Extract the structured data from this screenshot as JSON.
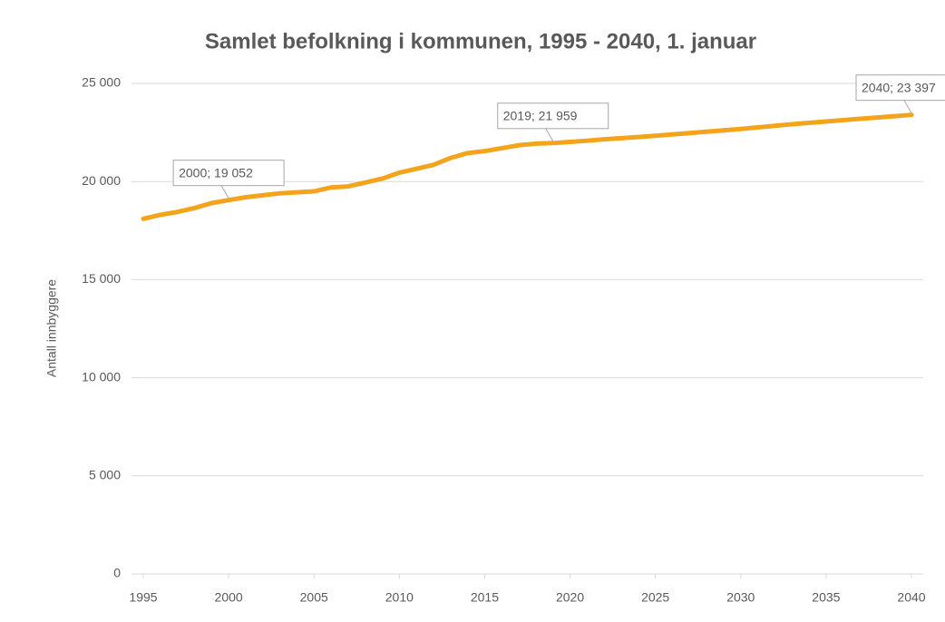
{
  "chart_data": {
    "type": "line",
    "title": "Samlet befolkning i kommunen, 1995 - 2040, 1. januar",
    "y_label": "Antall innbyggere",
    "x": [
      1995,
      1996,
      1997,
      1998,
      1999,
      2000,
      2001,
      2002,
      2003,
      2004,
      2005,
      2006,
      2007,
      2008,
      2009,
      2010,
      2011,
      2012,
      2013,
      2014,
      2015,
      2016,
      2017,
      2018,
      2019,
      2020,
      2021,
      2022,
      2023,
      2024,
      2025,
      2026,
      2027,
      2028,
      2029,
      2030,
      2031,
      2032,
      2033,
      2034,
      2035,
      2036,
      2037,
      2038,
      2039,
      2040
    ],
    "series": [
      {
        "color": "#f4a41c",
        "values": [
          18100,
          18300,
          18450,
          18650,
          18900,
          19052,
          19200,
          19300,
          19400,
          19450,
          19500,
          19700,
          19750,
          19950,
          20150,
          20450,
          20650,
          20850,
          21200,
          21450,
          21550,
          21700,
          21850,
          21930,
          21959,
          22020,
          22080,
          22150,
          22210,
          22270,
          22330,
          22400,
          22470,
          22540,
          22610,
          22680,
          22760,
          22840,
          22920,
          22990,
          23060,
          23130,
          23200,
          23260,
          23330,
          23397
        ],
        "value_labels": [
          null,
          null,
          null,
          null,
          null,
          "2000; 19 052",
          null,
          null,
          null,
          null,
          null,
          null,
          null,
          null,
          null,
          null,
          null,
          null,
          null,
          null,
          null,
          null,
          null,
          null,
          "2019; 21 959",
          null,
          null,
          null,
          null,
          null,
          null,
          null,
          null,
          null,
          null,
          null,
          null,
          null,
          null,
          null,
          null,
          null,
          null,
          null,
          null,
          "2040; 23 397"
        ]
      }
    ],
    "xlim": [
      1995,
      2040
    ],
    "xticks": [
      1995,
      2000,
      2005,
      2010,
      2015,
      2020,
      2025,
      2030,
      2035,
      2040
    ],
    "ylim": [
      0,
      25000
    ],
    "yticks": [
      0,
      {
        "value": 5000,
        "label": "5 000"
      },
      {
        "value": 10000,
        "label": "10 000"
      },
      {
        "value": 15000,
        "label": "15 000"
      },
      {
        "value": 20000,
        "label": "20 000"
      },
      {
        "value": 25000,
        "label": "25 000"
      }
    ],
    "grid": true
  }
}
